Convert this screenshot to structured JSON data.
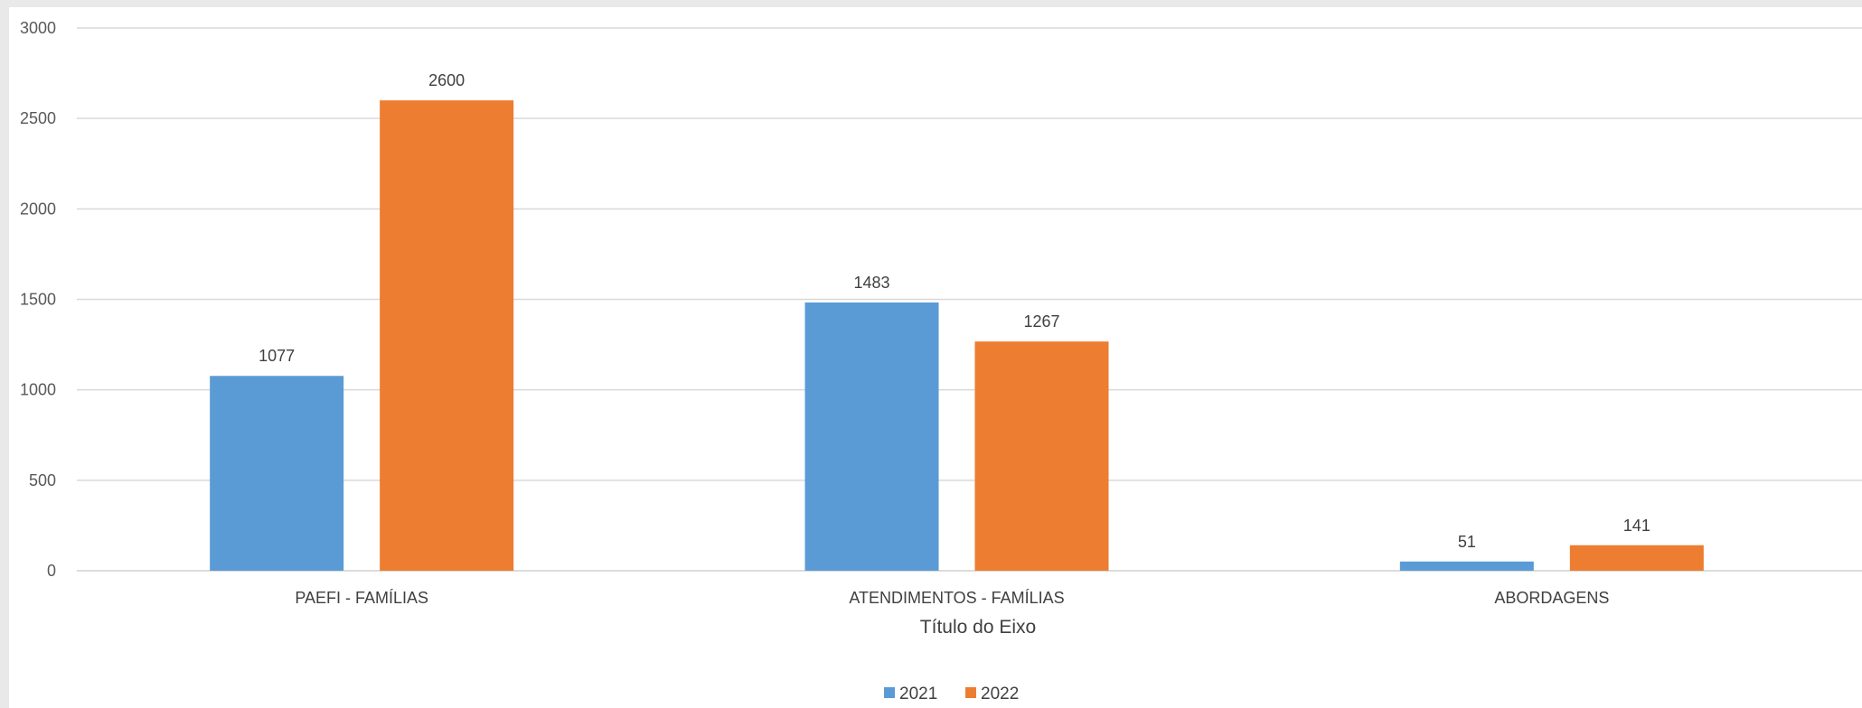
{
  "chart_data": {
    "type": "bar",
    "title": "",
    "xlabel": "Título do Eixo",
    "ylabel": "",
    "categories": [
      "PAEFI - FAMÍLIAS",
      "ATENDIMENTOS - FAMÍLIAS",
      "ABORDAGENS"
    ],
    "series": [
      {
        "name": "2021",
        "color": "#5b9bd5",
        "values": [
          1077,
          1483,
          51
        ]
      },
      {
        "name": "2022",
        "color": "#ed7d31",
        "values": [
          2600,
          1267,
          141
        ]
      }
    ],
    "ylim": [
      0,
      3000
    ],
    "yticks": [
      0,
      500,
      1000,
      1500,
      2000,
      2500,
      3000
    ],
    "grid": true,
    "legend": "bottom-center",
    "data_labels": true
  }
}
